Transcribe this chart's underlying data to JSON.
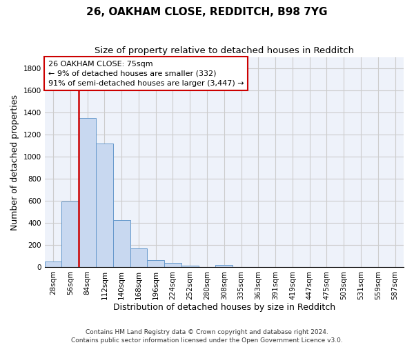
{
  "title1": "26, OAKHAM CLOSE, REDDITCH, B98 7YG",
  "title2": "Size of property relative to detached houses in Redditch",
  "xlabel": "Distribution of detached houses by size in Redditch",
  "ylabel": "Number of detached properties",
  "bin_labels": [
    "28sqm",
    "56sqm",
    "84sqm",
    "112sqm",
    "140sqm",
    "168sqm",
    "196sqm",
    "224sqm",
    "252sqm",
    "280sqm",
    "308sqm",
    "335sqm",
    "363sqm",
    "391sqm",
    "419sqm",
    "447sqm",
    "475sqm",
    "503sqm",
    "531sqm",
    "559sqm",
    "587sqm"
  ],
  "bar_heights": [
    50,
    595,
    1350,
    1120,
    425,
    170,
    60,
    38,
    15,
    0,
    20,
    0,
    0,
    0,
    0,
    0,
    0,
    0,
    0,
    0,
    0
  ],
  "bar_color": "#c8d8f0",
  "bar_edge_color": "#6699cc",
  "red_line_x": 1.5,
  "red_line_color": "#cc0000",
  "annotation_text": "26 OAKHAM CLOSE: 75sqm\n← 9% of detached houses are smaller (332)\n91% of semi-detached houses are larger (3,447) →",
  "annotation_box_color": "#cc0000",
  "annotation_text_color": "#000000",
  "ylim": [
    0,
    1900
  ],
  "yticks": [
    0,
    200,
    400,
    600,
    800,
    1000,
    1200,
    1400,
    1600,
    1800
  ],
  "grid_color": "#cccccc",
  "bg_color": "#eef2fa",
  "footer": "Contains HM Land Registry data © Crown copyright and database right 2024.\nContains public sector information licensed under the Open Government Licence v3.0.",
  "title1_fontsize": 11,
  "title2_fontsize": 9.5,
  "axis_label_fontsize": 9,
  "tick_fontsize": 7.5,
  "annotation_fontsize": 8,
  "footer_fontsize": 6.5
}
